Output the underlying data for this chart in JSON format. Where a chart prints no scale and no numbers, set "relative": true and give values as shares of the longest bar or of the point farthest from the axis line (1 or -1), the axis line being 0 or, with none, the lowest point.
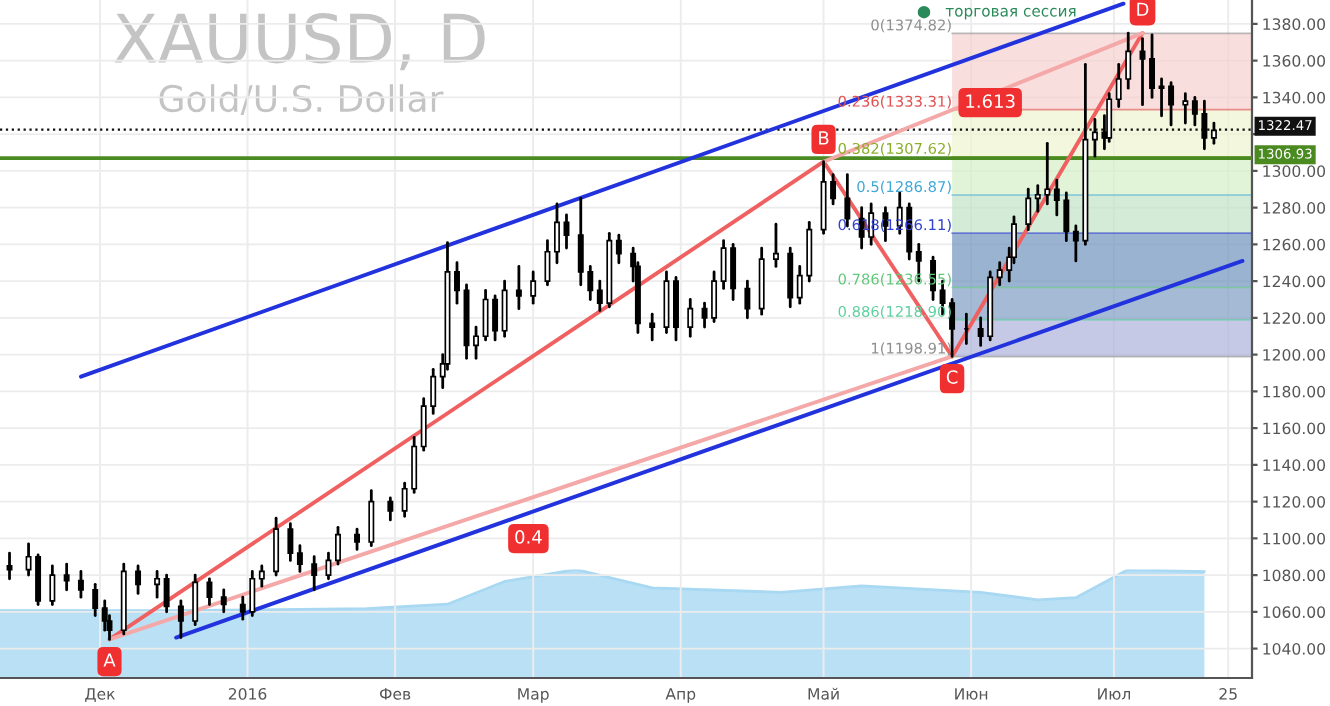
{
  "chart_data": [
    {
      "type": "candlestick",
      "title": "XAUUSD, D",
      "subtitle": "Gold/U.S. Dollar",
      "x": [
        "2015-11-12",
        "2015-11-16",
        "2015-11-18",
        "2015-11-21",
        "2015-11-24",
        "2015-11-27",
        "2015-11-30",
        "2015-12-02",
        "2015-12-03",
        "2015-12-06",
        "2015-12-09",
        "2015-12-13",
        "2015-12-15",
        "2015-12-18",
        "2015-12-21",
        "2015-12-24",
        "2015-12-27",
        "2015-12-31",
        "2016-01-02",
        "2016-01-04",
        "2016-01-07",
        "2016-01-10",
        "2016-01-12",
        "2016-01-15",
        "2016-01-18",
        "2016-01-20",
        "2016-01-24",
        "2016-01-27",
        "2016-01-31",
        "2016-02-03",
        "2016-02-05",
        "2016-02-07",
        "2016-02-09",
        "2016-02-11",
        "2016-02-12",
        "2016-02-14",
        "2016-02-16",
        "2016-02-18",
        "2016-02-20",
        "2016-02-22",
        "2016-02-24",
        "2016-02-27",
        "2016-03-01",
        "2016-03-04",
        "2016-03-06",
        "2016-03-08",
        "2016-03-11",
        "2016-03-13",
        "2016-03-15",
        "2016-03-17",
        "2016-03-19",
        "2016-03-22",
        "2016-03-23",
        "2016-03-26",
        "2016-03-29",
        "2016-03-31",
        "2016-04-03",
        "2016-04-06",
        "2016-04-08",
        "2016-04-10",
        "2016-04-12",
        "2016-04-15",
        "2016-04-18",
        "2016-04-21",
        "2016-04-24",
        "2016-04-26",
        "2016-04-28",
        "2016-05-01",
        "2016-05-03",
        "2016-05-06",
        "2016-05-09",
        "2016-05-11",
        "2016-05-14",
        "2016-05-17",
        "2016-05-19",
        "2016-05-21",
        "2016-05-24",
        "2016-05-26",
        "2016-05-28",
        "2016-05-31",
        "2016-06-03",
        "2016-06-05",
        "2016-06-07",
        "2016-06-09",
        "2016-06-10",
        "2016-06-13",
        "2016-06-15",
        "2016-06-17",
        "2016-06-19",
        "2016-06-21",
        "2016-06-23",
        "2016-06-25",
        "2016-06-27",
        "2016-06-29",
        "2016-06-30",
        "2016-07-02",
        "2016-07-04",
        "2016-07-07",
        "2016-07-09",
        "2016-07-11",
        "2016-07-13",
        "2016-07-16",
        "2016-07-18",
        "2016-07-20",
        "2016-07-22"
      ],
      "ohlc": [
        [
          1085,
          1092,
          1078,
          1083
        ],
        [
          1083,
          1097,
          1080,
          1090
        ],
        [
          1090,
          1091,
          1064,
          1066
        ],
        [
          1066,
          1085,
          1064,
          1080
        ],
        [
          1080,
          1086,
          1072,
          1077
        ],
        [
          1077,
          1082,
          1068,
          1072
        ],
        [
          1072,
          1075,
          1058,
          1062
        ],
        [
          1062,
          1066,
          1050,
          1055
        ],
        [
          1055,
          1058,
          1045,
          1050
        ],
        [
          1050,
          1086,
          1048,
          1082
        ],
        [
          1082,
          1085,
          1070,
          1075
        ],
        [
          1075,
          1082,
          1068,
          1078
        ],
        [
          1078,
          1080,
          1060,
          1063
        ],
        [
          1063,
          1066,
          1046,
          1055
        ],
        [
          1055,
          1080,
          1053,
          1076
        ],
        [
          1076,
          1078,
          1064,
          1068
        ],
        [
          1068,
          1072,
          1060,
          1064
        ],
        [
          1064,
          1068,
          1056,
          1060
        ],
        [
          1060,
          1082,
          1058,
          1078
        ],
        [
          1078,
          1085,
          1074,
          1082
        ],
        [
          1082,
          1111,
          1080,
          1105
        ],
        [
          1105,
          1108,
          1088,
          1092
        ],
        [
          1092,
          1096,
          1082,
          1086
        ],
        [
          1086,
          1090,
          1072,
          1080
        ],
        [
          1080,
          1092,
          1078,
          1088
        ],
        [
          1088,
          1106,
          1086,
          1102
        ],
        [
          1102,
          1105,
          1094,
          1098
        ],
        [
          1098,
          1126,
          1096,
          1120
        ],
        [
          1120,
          1122,
          1110,
          1115
        ],
        [
          1115,
          1130,
          1112,
          1127
        ],
        [
          1127,
          1155,
          1125,
          1150
        ],
        [
          1150,
          1176,
          1148,
          1172
        ],
        [
          1172,
          1192,
          1168,
          1188
        ],
        [
          1188,
          1200,
          1182,
          1195
        ],
        [
          1195,
          1261,
          1192,
          1245
        ],
        [
          1245,
          1250,
          1228,
          1235
        ],
        [
          1235,
          1238,
          1198,
          1205
        ],
        [
          1205,
          1215,
          1198,
          1210
        ],
        [
          1210,
          1235,
          1208,
          1230
        ],
        [
          1230,
          1232,
          1208,
          1213
        ],
        [
          1213,
          1240,
          1210,
          1235
        ],
        [
          1235,
          1248,
          1225,
          1232
        ],
        [
          1232,
          1245,
          1228,
          1240
        ],
        [
          1240,
          1262,
          1238,
          1256
        ],
        [
          1256,
          1282,
          1250,
          1272
        ],
        [
          1272,
          1276,
          1258,
          1265
        ],
        [
          1265,
          1285,
          1238,
          1245
        ],
        [
          1245,
          1248,
          1230,
          1235
        ],
        [
          1235,
          1240,
          1224,
          1228
        ],
        [
          1228,
          1266,
          1226,
          1262
        ],
        [
          1262,
          1265,
          1250,
          1255
        ],
        [
          1255,
          1258,
          1240,
          1248
        ],
        [
          1248,
          1250,
          1212,
          1217
        ],
        [
          1217,
          1222,
          1208,
          1215
        ],
        [
          1215,
          1245,
          1212,
          1240
        ],
        [
          1240,
          1242,
          1208,
          1215
        ],
        [
          1215,
          1230,
          1210,
          1225
        ],
        [
          1225,
          1228,
          1215,
          1220
        ],
        [
          1220,
          1245,
          1218,
          1240
        ],
        [
          1240,
          1262,
          1236,
          1258
        ],
        [
          1258,
          1260,
          1230,
          1236
        ],
        [
          1236,
          1240,
          1220,
          1225
        ],
        [
          1225,
          1258,
          1222,
          1252
        ],
        [
          1252,
          1271,
          1248,
          1255
        ],
        [
          1255,
          1258,
          1226,
          1231
        ],
        [
          1231,
          1248,
          1228,
          1243
        ],
        [
          1243,
          1272,
          1240,
          1268
        ],
        [
          1268,
          1305,
          1266,
          1294
        ],
        [
          1294,
          1298,
          1282,
          1285
        ],
        [
          1285,
          1298,
          1270,
          1274
        ],
        [
          1274,
          1280,
          1258,
          1264
        ],
        [
          1264,
          1282,
          1260,
          1277
        ],
        [
          1277,
          1280,
          1262,
          1270
        ],
        [
          1270,
          1288,
          1266,
          1280
        ],
        [
          1280,
          1282,
          1252,
          1256
        ],
        [
          1256,
          1260,
          1240,
          1251
        ],
        [
          1251,
          1253,
          1230,
          1235
        ],
        [
          1235,
          1240,
          1222,
          1228
        ],
        [
          1228,
          1230,
          1199,
          1214
        ],
        [
          1214,
          1222,
          1206,
          1214
        ],
        [
          1214,
          1220,
          1205,
          1210
        ],
        [
          1210,
          1245,
          1208,
          1242
        ],
        [
          1242,
          1250,
          1238,
          1246
        ],
        [
          1246,
          1258,
          1240,
          1253
        ],
        [
          1253,
          1275,
          1250,
          1271
        ],
        [
          1271,
          1290,
          1268,
          1285
        ],
        [
          1285,
          1292,
          1278,
          1287
        ],
        [
          1287,
          1315,
          1282,
          1290
        ],
        [
          1290,
          1295,
          1276,
          1284
        ],
        [
          1284,
          1288,
          1262,
          1267
        ],
        [
          1267,
          1270,
          1251,
          1262
        ],
        [
          1262,
          1358,
          1260,
          1317
        ],
        [
          1317,
          1328,
          1308,
          1321
        ],
        [
          1321,
          1330,
          1312,
          1318
        ],
        [
          1318,
          1342,
          1316,
          1339
        ],
        [
          1339,
          1358,
          1335,
          1350
        ],
        [
          1350,
          1375,
          1345,
          1365
        ],
        [
          1365,
          1372,
          1336,
          1361
        ],
        [
          1361,
          1374,
          1340,
          1345
        ],
        [
          1345,
          1350,
          1330,
          1346
        ],
        [
          1346,
          1348,
          1325,
          1336
        ],
        [
          1336,
          1342,
          1326,
          1338
        ],
        [
          1338,
          1340,
          1325,
          1331
        ],
        [
          1331,
          1338,
          1312,
          1318
        ],
        [
          1318,
          1326,
          1315,
          1322
        ]
      ],
      "color": "#000000",
      "series": [
        {
          "type": "line",
          "color": "#2233dd",
          "x": [
            "2015-11-27",
            "2016-07-03"
          ],
          "values": [
            1188,
            1391
          ]
        },
        {
          "type": "line",
          "color": "#2233dd",
          "x": [
            "2015-12-17",
            "2016-07-28"
          ],
          "values": [
            1046,
            1251
          ]
        },
        {
          "type": "line",
          "color": "#f06060",
          "x": [
            "2015-12-03",
            "2016-05-01"
          ],
          "values": [
            1045,
            1305
          ]
        },
        {
          "type": "line",
          "color": "#f06060",
          "x": [
            "2016-05-01",
            "2016-05-28"
          ],
          "values": [
            1305,
            1199
          ]
        },
        {
          "type": "line",
          "color": "#f06060",
          "x": [
            "2016-05-28",
            "2016-07-07"
          ],
          "values": [
            1199,
            1375
          ]
        },
        {
          "type": "line",
          "color": "#f4a8a8",
          "x": [
            "2015-12-03",
            "2016-05-28"
          ],
          "values": [
            1045,
            1199
          ]
        },
        {
          "type": "line",
          "color": "#f4a8a8",
          "x": [
            "2016-05-01",
            "2016-07-07"
          ],
          "values": [
            1305,
            1375
          ]
        }
      ],
      "bands": [
        {
          "axis": "y",
          "from": 1333.31,
          "to": 1374.82,
          "color": "#f6d0d0"
        },
        {
          "axis": "y",
          "from": 1307.62,
          "to": 1333.31,
          "color": "#eef4cf"
        },
        {
          "axis": "y",
          "from": 1286.87,
          "to": 1307.62,
          "color": "#d6f0c8"
        },
        {
          "axis": "y",
          "from": 1266.11,
          "to": 1286.87,
          "color": "#c2e3c6"
        },
        {
          "axis": "y",
          "from": 1236.55,
          "to": 1266.11,
          "color": "#6f93bd"
        },
        {
          "axis": "y",
          "from": 1218.9,
          "to": 1236.55,
          "color": "#7f9cc2"
        },
        {
          "axis": "y",
          "from": 1198.91,
          "to": 1218.9,
          "color": "#aeb2dc"
        }
      ],
      "ref_lines": [
        {
          "axis": "y",
          "value": 1374.82,
          "label": "0(1374.82)",
          "color": "#909090"
        },
        {
          "axis": "y",
          "value": 1333.31,
          "label": "0.236(1333.31)",
          "color": "#e05050"
        },
        {
          "axis": "y",
          "value": 1307.62,
          "label": "0.382(1307.62)",
          "color": "#8aae2a"
        },
        {
          "axis": "y",
          "value": 1286.87,
          "label": "0.5(1286.87)",
          "color": "#40a8d8"
        },
        {
          "axis": "y",
          "value": 1266.11,
          "label": "0.618(1266.11)",
          "color": "#3040d0"
        },
        {
          "axis": "y",
          "value": 1236.55,
          "label": "0.786(1236.55)",
          "color": "#60c878"
        },
        {
          "axis": "y",
          "value": 1218.9,
          "label": "0.886(1218.90)",
          "color": "#60d0a0"
        },
        {
          "axis": "y",
          "value": 1198.91,
          "label": "1(1198.91)",
          "color": "#909090"
        },
        {
          "axis": "y",
          "value": 1322.47,
          "label": "1322.47",
          "color": "#111111",
          "line_style": "dotted"
        },
        {
          "axis": "y",
          "value": 1306.93,
          "label": "1306.93",
          "color": "#4a8a20",
          "line_style": "solid"
        }
      ],
      "annotations": [
        {
          "text": "A",
          "x": "2015-12-03",
          "y": 1045
        },
        {
          "text": "B",
          "x": "2016-05-01",
          "y": 1305
        },
        {
          "text": "C",
          "x": "2016-05-28",
          "y": 1199
        },
        {
          "text": "D",
          "x": "2016-07-07",
          "y": 1375
        },
        {
          "text": "0.4",
          "x": "2016-02-29",
          "y": 1112
        },
        {
          "text": "1.613",
          "x": "2016-06-05",
          "y": 1325
        },
        "торговая сессия"
      ],
      "xlim": [
        "2015-11-10",
        "2016-07-30"
      ],
      "xticks": [
        {
          "value": "2015-12-01",
          "label": "Дек"
        },
        {
          "value": "2016-01-01",
          "label": "2016"
        },
        {
          "value": "2016-02-01",
          "label": "Фев"
        },
        {
          "value": "2016-03-01",
          "label": "Мар"
        },
        {
          "value": "2016-04-01",
          "label": "Апр"
        },
        {
          "value": "2016-05-01",
          "label": "Май"
        },
        {
          "value": "2016-06-01",
          "label": "Июн"
        },
        {
          "value": "2016-07-01",
          "label": "Июл"
        },
        {
          "value": "2016-07-25",
          "label": "25"
        }
      ],
      "ylim": [
        1024,
        1393
      ],
      "yticks": [
        {
          "value": 1040,
          "label": "1040.00"
        },
        {
          "value": 1060,
          "label": "1060.00"
        },
        {
          "value": 1080,
          "label": "1080.00"
        },
        {
          "value": 1100,
          "label": "1100.00"
        },
        {
          "value": 1120,
          "label": "1120.00"
        },
        {
          "value": 1140,
          "label": "1140.00"
        },
        {
          "value": 1160,
          "label": "1160.00"
        },
        {
          "value": 1180,
          "label": "1180.00"
        },
        {
          "value": 1200,
          "label": "1200.00"
        },
        {
          "value": 1220,
          "label": "1220.00"
        },
        {
          "value": 1240,
          "label": "1240.00"
        },
        {
          "value": 1260,
          "label": "1260.00"
        },
        {
          "value": 1280,
          "label": "1280.00"
        },
        {
          "value": 1300,
          "label": "1300.00"
        },
        {
          "value": 1320,
          "label": null
        },
        {
          "value": 1340,
          "label": "1340.00"
        },
        {
          "value": 1360,
          "label": "1360.00"
        },
        {
          "value": 1380,
          "label": "1380.00"
        }
      ],
      "grid": true
    },
    {
      "type": "area",
      "relative": true,
      "color": "#a8d8f2",
      "x": [
        "2015-11-10",
        "2015-12-15",
        "2016-01-26",
        "2016-02-12",
        "2016-02-24",
        "2016-03-10",
        "2016-03-26",
        "2016-04-22",
        "2016-05-09",
        "2016-06-03",
        "2016-06-15",
        "2016-06-23",
        "2016-07-04",
        "2016-07-20"
      ],
      "values": [
        0.62,
        0.62,
        0.64,
        0.68,
        0.89,
        1,
        0.83,
        0.79,
        0.85,
        0.79,
        0.72,
        0.74,
        1,
        0.98
      ],
      "xlim": [
        "2015-11-10",
        "2016-07-30"
      ],
      "tick_labels": false
    }
  ]
}
